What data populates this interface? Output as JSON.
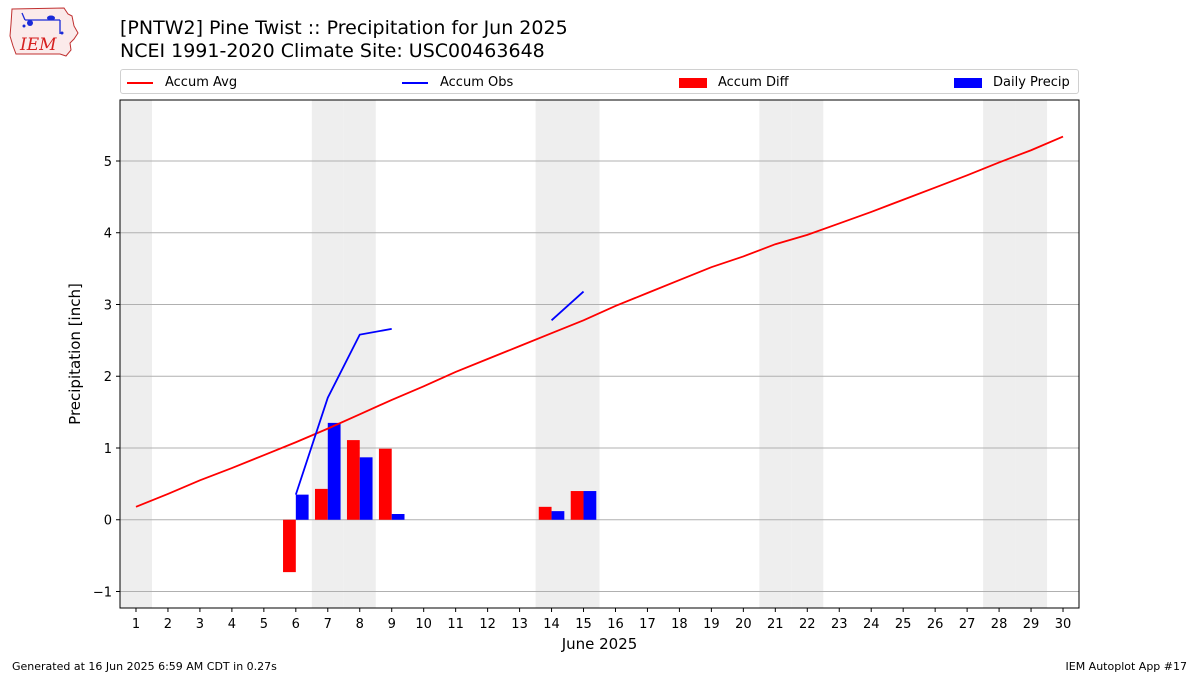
{
  "header": {
    "title_line1": "[PNTW2] Pine Twist :: Precipitation for Jun 2025",
    "title_line2": "NCEI 1991-2020 Climate Site: USC00463648"
  },
  "logo": {
    "text": "IEM",
    "icon": "iem-logo-icon"
  },
  "footer": {
    "generated": "Generated at 16 Jun 2025 6:59 AM CDT in 0.27s",
    "app": "IEM Autoplot App #17"
  },
  "colors": {
    "avg": "#ff0000",
    "obs": "#0000ff",
    "diff": "#ff0000",
    "daily": "#0000ff",
    "weekend": "#eeeeee",
    "grid": "#b0b0b0"
  },
  "chart_data": {
    "type": "bar",
    "xlabel": "June 2025",
    "ylabel": "Precipitation [inch]",
    "xlim": [
      0.5,
      30.5
    ],
    "ylim": [
      -1.23,
      5.85
    ],
    "yticks": [
      -1,
      0,
      1,
      2,
      3,
      4,
      5
    ],
    "xticks": [
      1,
      2,
      3,
      4,
      5,
      6,
      7,
      8,
      9,
      10,
      11,
      12,
      13,
      14,
      15,
      16,
      17,
      18,
      19,
      20,
      21,
      22,
      23,
      24,
      25,
      26,
      27,
      28,
      29,
      30
    ],
    "grid": "horizontal",
    "legend_placement": "top",
    "weekend_days": [
      1,
      7,
      8,
      14,
      15,
      21,
      22,
      28,
      29
    ],
    "series": [
      {
        "name": "Accum Avg",
        "kind": "line",
        "x": [
          1,
          2,
          3,
          4,
          5,
          6,
          7,
          8,
          9,
          10,
          11,
          12,
          13,
          14,
          15,
          16,
          17,
          18,
          19,
          20,
          21,
          22,
          23,
          24,
          25,
          26,
          27,
          28,
          29,
          30
        ],
        "values": [
          0.18,
          0.36,
          0.55,
          0.72,
          0.9,
          1.08,
          1.27,
          1.47,
          1.67,
          1.86,
          2.06,
          2.24,
          2.42,
          2.6,
          2.78,
          2.98,
          3.16,
          3.34,
          3.52,
          3.67,
          3.84,
          3.97,
          4.13,
          4.29,
          4.46,
          4.63,
          4.8,
          4.98,
          5.15,
          5.34
        ]
      },
      {
        "name": "Accum Obs",
        "kind": "line",
        "x": [
          6,
          7,
          8,
          9,
          10,
          11,
          12,
          13,
          14,
          15
        ],
        "values": [
          0.35,
          1.7,
          2.58,
          2.66,
          null,
          null,
          null,
          null,
          2.78,
          3.18
        ]
      },
      {
        "name": "Accum Diff",
        "kind": "bar",
        "x": [
          6,
          7,
          8,
          9,
          14,
          15
        ],
        "values": [
          -0.73,
          0.43,
          1.11,
          0.99,
          0.18,
          0.4
        ]
      },
      {
        "name": "Daily Precip",
        "kind": "bar",
        "x": [
          6,
          7,
          8,
          9,
          14,
          15
        ],
        "values": [
          0.35,
          1.35,
          0.87,
          0.08,
          0.12,
          0.4
        ]
      }
    ]
  }
}
